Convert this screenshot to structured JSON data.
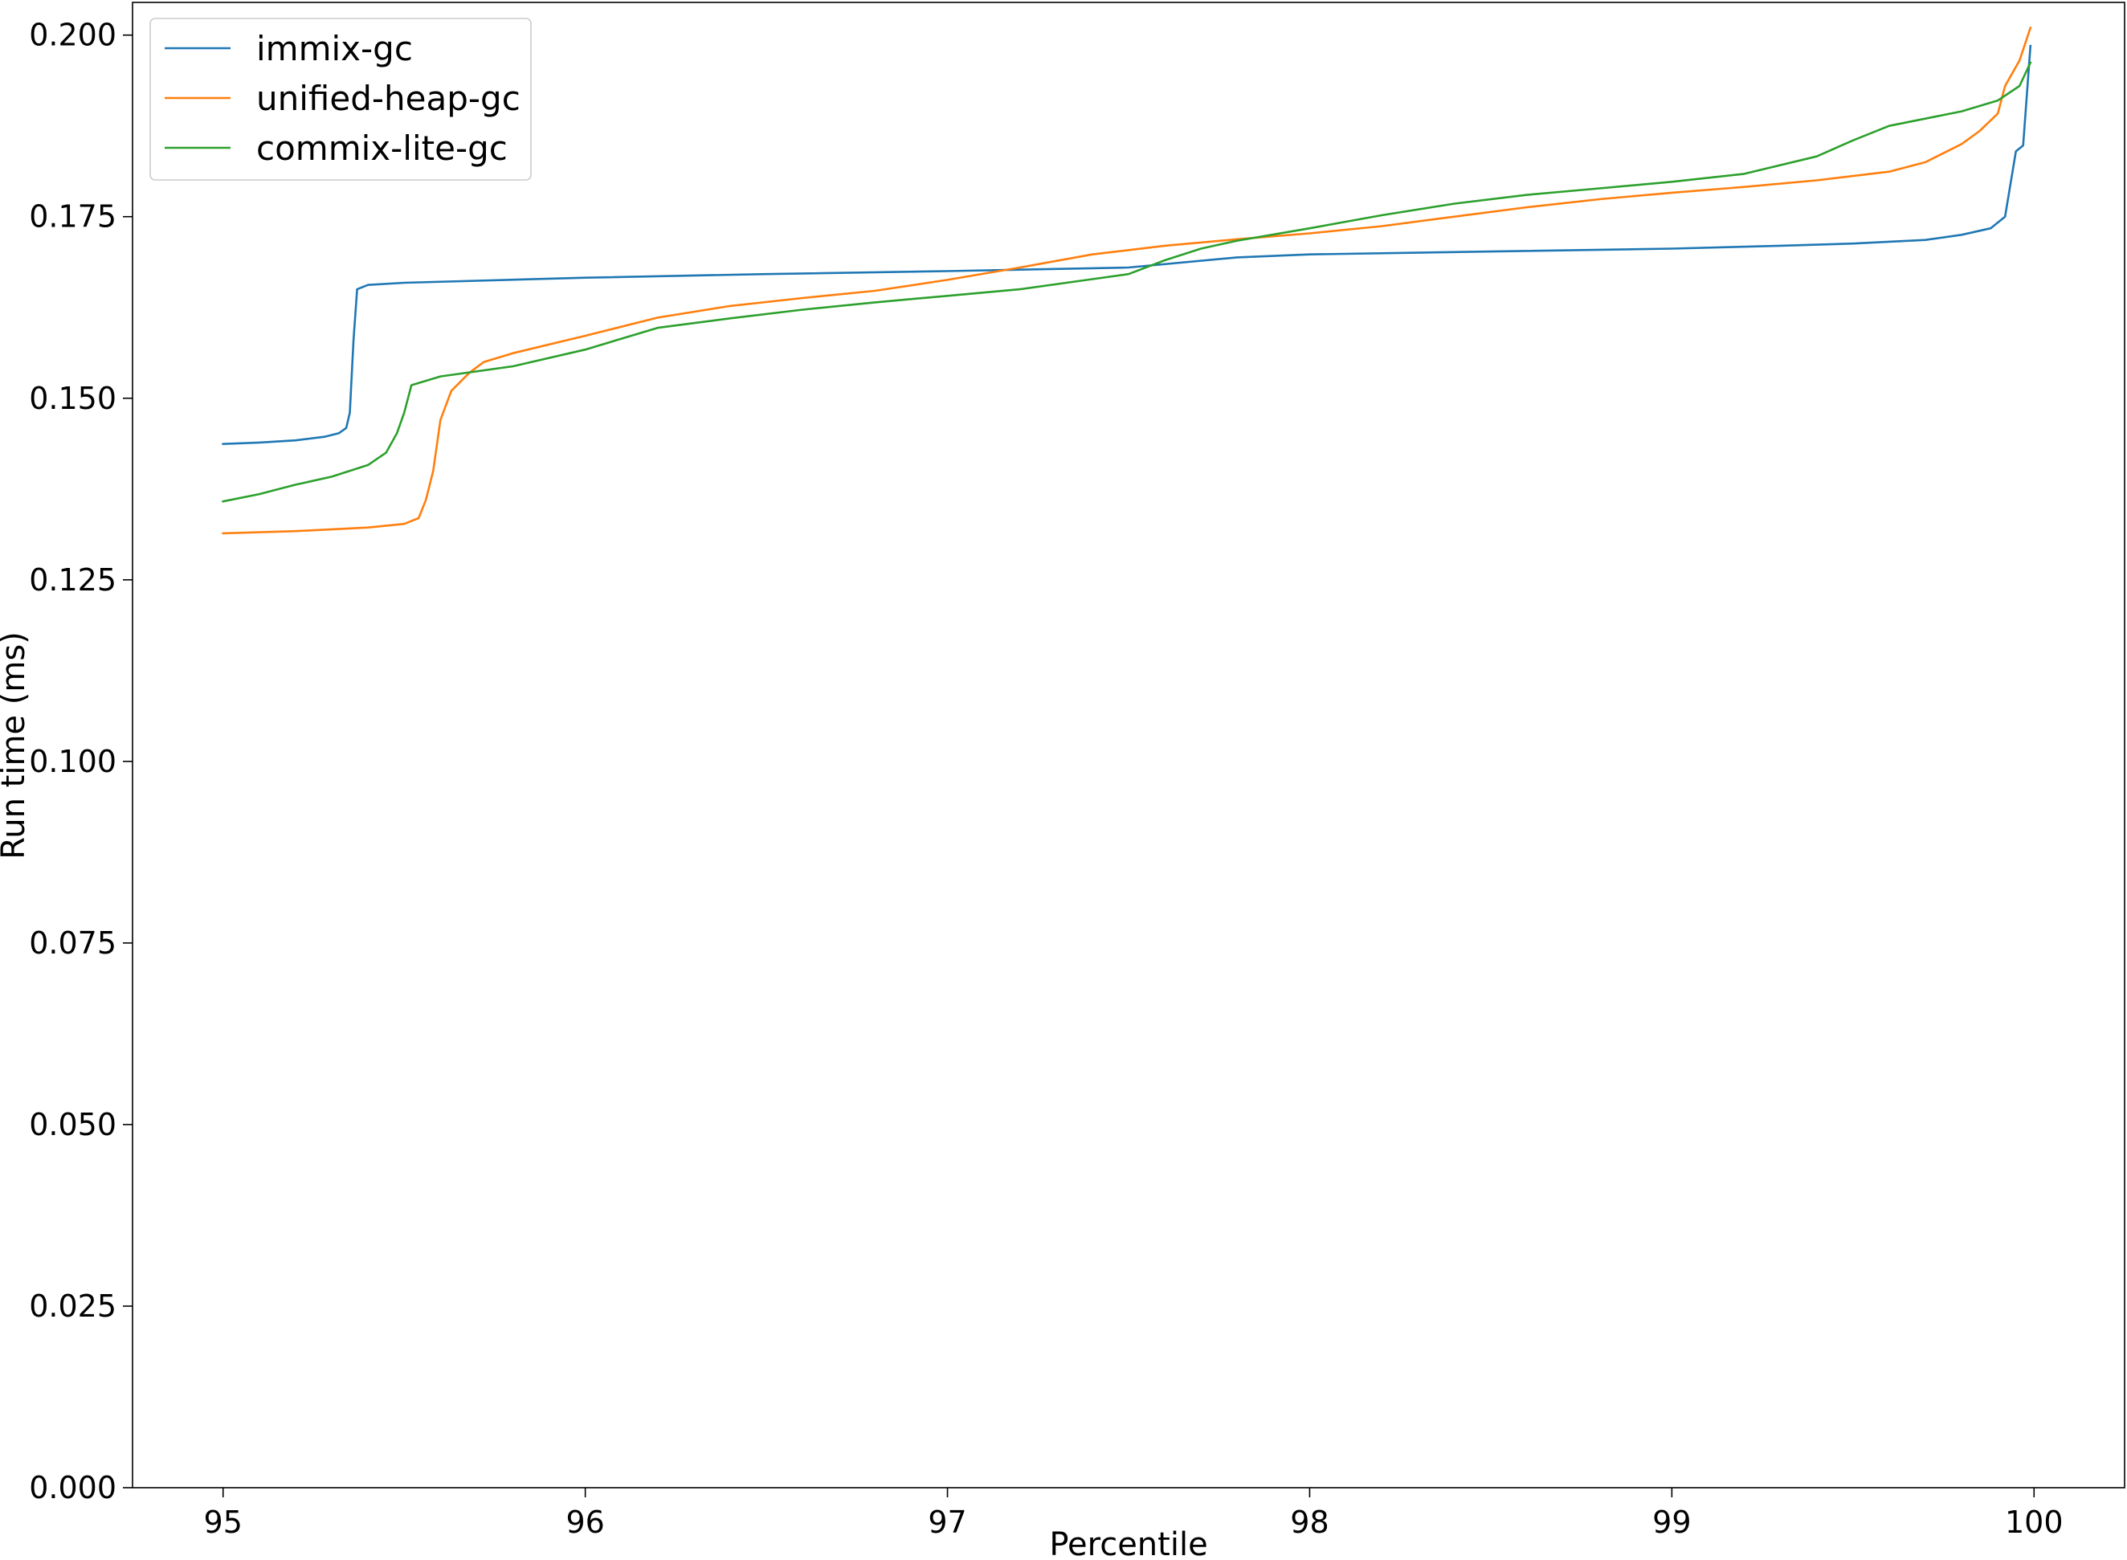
{
  "chart_data": {
    "type": "line",
    "title": "",
    "xlabel": "Percentile",
    "ylabel": "Run time (ms)",
    "xlim": [
      94.75,
      100.25
    ],
    "ylim": [
      0.0,
      0.2045
    ],
    "xticks": [
      95,
      96,
      97,
      98,
      99,
      100
    ],
    "xtick_labels": [
      "95",
      "96",
      "97",
      "98",
      "99",
      "100"
    ],
    "yticks": [
      0.0,
      0.025,
      0.05,
      0.075,
      0.1,
      0.125,
      0.15,
      0.175,
      0.2
    ],
    "ytick_labels": [
      "0.000",
      "0.025",
      "0.050",
      "0.075",
      "0.100",
      "0.125",
      "0.150",
      "0.175",
      "0.200"
    ],
    "grid": false,
    "legend_position": "top-left",
    "series": [
      {
        "name": "immix-gc",
        "color": "#1f77b4",
        "points": [
          [
            95.0,
            0.1437
          ],
          [
            95.1,
            0.1439
          ],
          [
            95.2,
            0.1442
          ],
          [
            95.28,
            0.1447
          ],
          [
            95.32,
            0.1452
          ],
          [
            95.34,
            0.1459
          ],
          [
            95.35,
            0.148
          ],
          [
            95.36,
            0.158
          ],
          [
            95.37,
            0.165
          ],
          [
            95.4,
            0.1656
          ],
          [
            95.5,
            0.1659
          ],
          [
            96.0,
            0.1666
          ],
          [
            96.5,
            0.1671
          ],
          [
            97.0,
            0.1675
          ],
          [
            97.5,
            0.168
          ],
          [
            97.8,
            0.1694
          ],
          [
            98.0,
            0.1698
          ],
          [
            98.5,
            0.1702
          ],
          [
            99.0,
            0.1706
          ],
          [
            99.3,
            0.171
          ],
          [
            99.5,
            0.1713
          ],
          [
            99.7,
            0.1718
          ],
          [
            99.8,
            0.1725
          ],
          [
            99.88,
            0.1734
          ],
          [
            99.92,
            0.175
          ],
          [
            99.95,
            0.184
          ],
          [
            99.97,
            0.1848
          ],
          [
            99.99,
            0.1985
          ]
        ]
      },
      {
        "name": "unified-heap-gc",
        "color": "#ff7f0e",
        "points": [
          [
            95.0,
            0.1314
          ],
          [
            95.2,
            0.1317
          ],
          [
            95.4,
            0.1322
          ],
          [
            95.5,
            0.1327
          ],
          [
            95.54,
            0.1335
          ],
          [
            95.56,
            0.136
          ],
          [
            95.58,
            0.14
          ],
          [
            95.6,
            0.147
          ],
          [
            95.63,
            0.151
          ],
          [
            95.68,
            0.1535
          ],
          [
            95.72,
            0.155
          ],
          [
            95.8,
            0.1562
          ],
          [
            96.0,
            0.1586
          ],
          [
            96.2,
            0.1611
          ],
          [
            96.4,
            0.1627
          ],
          [
            96.6,
            0.1638
          ],
          [
            96.8,
            0.1648
          ],
          [
            97.0,
            0.1663
          ],
          [
            97.2,
            0.168
          ],
          [
            97.4,
            0.1698
          ],
          [
            97.6,
            0.171
          ],
          [
            97.8,
            0.1719
          ],
          [
            98.0,
            0.1727
          ],
          [
            98.2,
            0.1737
          ],
          [
            98.4,
            0.175
          ],
          [
            98.6,
            0.1763
          ],
          [
            98.8,
            0.1774
          ],
          [
            99.0,
            0.1783
          ],
          [
            99.2,
            0.1791
          ],
          [
            99.4,
            0.18
          ],
          [
            99.6,
            0.1812
          ],
          [
            99.7,
            0.1825
          ],
          [
            99.8,
            0.185
          ],
          [
            99.85,
            0.1868
          ],
          [
            99.9,
            0.1892
          ],
          [
            99.92,
            0.193
          ],
          [
            99.96,
            0.1965
          ],
          [
            99.99,
            0.201
          ]
        ]
      },
      {
        "name": "commix-lite-gc",
        "color": "#2ca02c",
        "points": [
          [
            95.0,
            0.1358
          ],
          [
            95.1,
            0.1368
          ],
          [
            95.2,
            0.1381
          ],
          [
            95.3,
            0.1392
          ],
          [
            95.4,
            0.1408
          ],
          [
            95.45,
            0.1425
          ],
          [
            95.48,
            0.1452
          ],
          [
            95.5,
            0.148
          ],
          [
            95.52,
            0.1518
          ],
          [
            95.6,
            0.153
          ],
          [
            95.8,
            0.1544
          ],
          [
            96.0,
            0.1567
          ],
          [
            96.2,
            0.1597
          ],
          [
            96.4,
            0.161
          ],
          [
            96.6,
            0.1622
          ],
          [
            96.8,
            0.1632
          ],
          [
            97.0,
            0.1641
          ],
          [
            97.2,
            0.165
          ],
          [
            97.4,
            0.1664
          ],
          [
            97.5,
            0.1671
          ],
          [
            97.6,
            0.169
          ],
          [
            97.7,
            0.1706
          ],
          [
            97.8,
            0.1717
          ],
          [
            98.0,
            0.1734
          ],
          [
            98.2,
            0.1752
          ],
          [
            98.4,
            0.1768
          ],
          [
            98.6,
            0.178
          ],
          [
            98.8,
            0.1789
          ],
          [
            99.0,
            0.1798
          ],
          [
            99.2,
            0.1809
          ],
          [
            99.4,
            0.1833
          ],
          [
            99.5,
            0.1855
          ],
          [
            99.6,
            0.1875
          ],
          [
            99.8,
            0.1895
          ],
          [
            99.9,
            0.191
          ],
          [
            99.96,
            0.193
          ],
          [
            99.99,
            0.1962
          ]
        ]
      }
    ]
  }
}
